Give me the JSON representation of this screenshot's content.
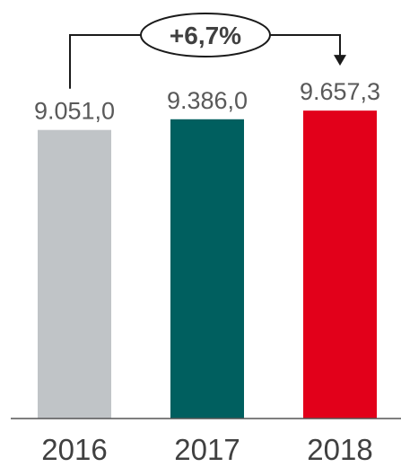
{
  "chart_data": {
    "type": "bar",
    "categories": [
      "2016",
      "2017",
      "2018"
    ],
    "values": [
      9051.0,
      9386.0,
      9657.3
    ],
    "value_labels": [
      "9.051,0",
      "9.386,0",
      "9.657,3"
    ],
    "colors": [
      "#c0c4c7",
      "#005f5f",
      "#e2001a"
    ],
    "title": "",
    "xlabel": "",
    "ylabel": "",
    "ylim": [
      0,
      10000
    ],
    "grid": false,
    "annotation": {
      "text": "+6,7%",
      "from": "2016",
      "to": "2018"
    }
  }
}
